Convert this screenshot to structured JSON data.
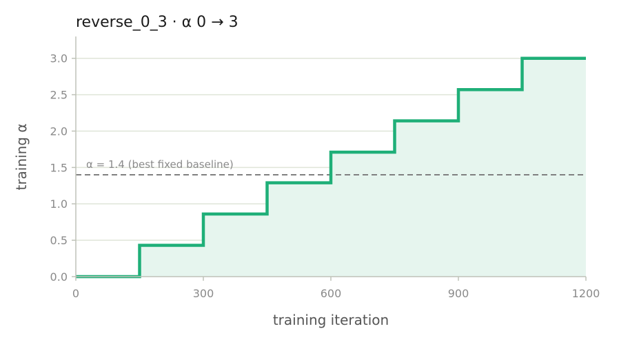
{
  "chart_data": {
    "type": "line",
    "title": "reverse_0_3   ·   α 0 → 3",
    "xlabel": "training iteration",
    "ylabel": "training α",
    "xlim": [
      0,
      1200
    ],
    "ylim": [
      0,
      3.3
    ],
    "xticks": [
      0,
      300,
      600,
      900,
      1200
    ],
    "yticks": [
      0.0,
      0.5,
      1.0,
      1.5,
      2.0,
      2.5,
      3.0
    ],
    "xtick_labels": [
      "0",
      "300",
      "600",
      "900",
      "1200"
    ],
    "ytick_labels": [
      "0.0",
      "0.5",
      "1.0",
      "1.5",
      "2.0",
      "2.5",
      "3.0"
    ],
    "grid": "horizontal",
    "series": [
      {
        "step": "post",
        "color": "#1faf78",
        "fill_color": "#e6f5ee",
        "x": [
          0,
          150,
          300,
          450,
          600,
          750,
          900,
          1050,
          1200
        ],
        "y": [
          0.0,
          0.43,
          0.86,
          1.29,
          1.71,
          2.14,
          2.57,
          3.0,
          3.0
        ]
      }
    ],
    "reference_line": {
      "y": 1.4,
      "label": "α = 1.4 (best fixed baseline)",
      "color": "#7f7f7f",
      "style": "dashed"
    },
    "colors": {
      "grid": "#dfe5d8",
      "axis": "#bfc2b8",
      "tick_text": "#8a8a8a"
    }
  }
}
